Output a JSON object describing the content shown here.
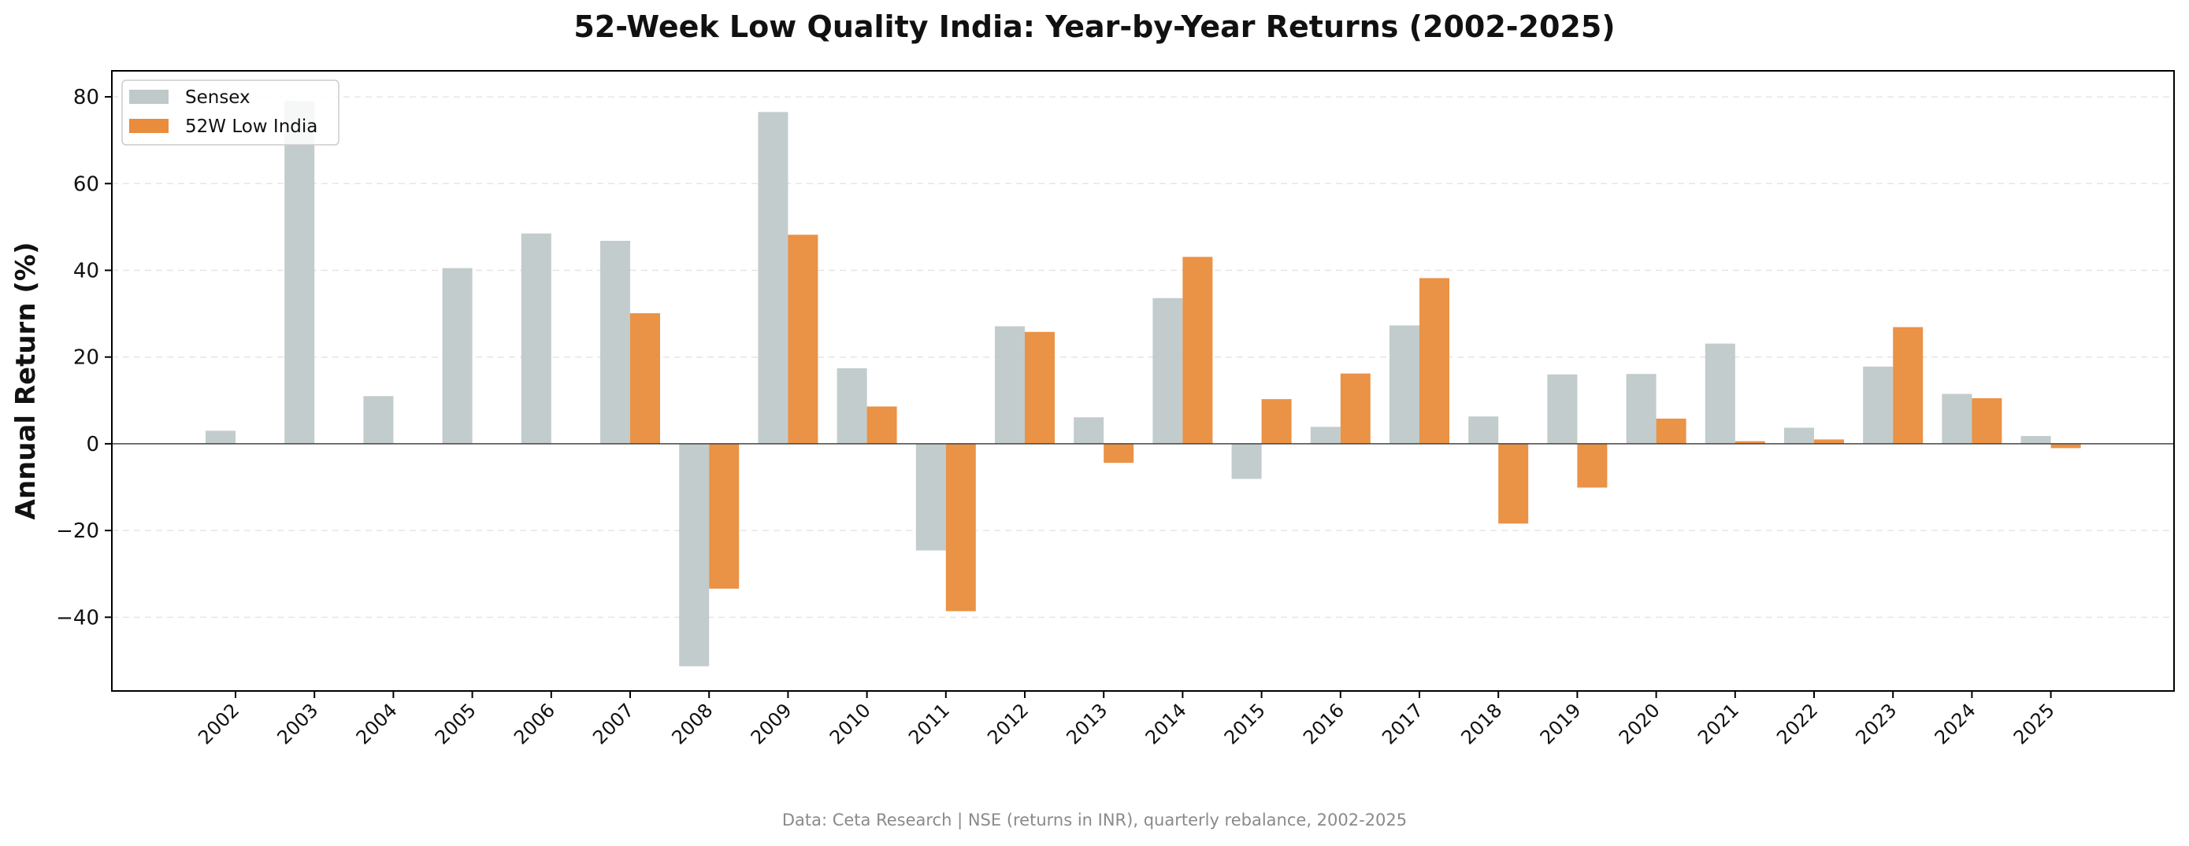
{
  "chart_data": {
    "type": "bar",
    "title": "52-Week Low Quality India: Year-by-Year Returns (2002-2025)",
    "xlabel": "",
    "ylabel": "Annual Return (%)",
    "footer": "Data: Ceta Research | NSE (returns in INR), quarterly rebalance, 2002-2025",
    "categories": [
      "2002",
      "2003",
      "2004",
      "2005",
      "2006",
      "2007",
      "2008",
      "2009",
      "2010",
      "2011",
      "2012",
      "2013",
      "2014",
      "2015",
      "2016",
      "2017",
      "2018",
      "2019",
      "2020",
      "2021",
      "2022",
      "2023",
      "2024",
      "2025"
    ],
    "series": [
      {
        "name": "Sensex",
        "color": "#bfc9c9",
        "values": [
          3.0,
          79.0,
          11.0,
          40.5,
          48.5,
          46.8,
          -51.3,
          76.5,
          17.4,
          -24.6,
          27.1,
          6.1,
          33.6,
          -8.1,
          3.9,
          27.3,
          6.3,
          16.0,
          16.1,
          23.1,
          3.7,
          17.8,
          11.5,
          1.8
        ]
      },
      {
        "name": "52W Low India",
        "color": "#e98c3c",
        "values": [
          null,
          null,
          null,
          null,
          null,
          30.1,
          -33.4,
          48.2,
          8.6,
          -38.6,
          25.8,
          -4.4,
          43.1,
          10.3,
          16.2,
          38.2,
          -18.4,
          -10.1,
          5.8,
          0.6,
          1.0,
          26.9,
          10.5,
          -1.0
        ]
      }
    ],
    "yticks": [
      80,
      60,
      40,
      20,
      0,
      -20,
      -40
    ],
    "ylim": [
      -57,
      86
    ],
    "grid": true,
    "legend": "top-left"
  }
}
